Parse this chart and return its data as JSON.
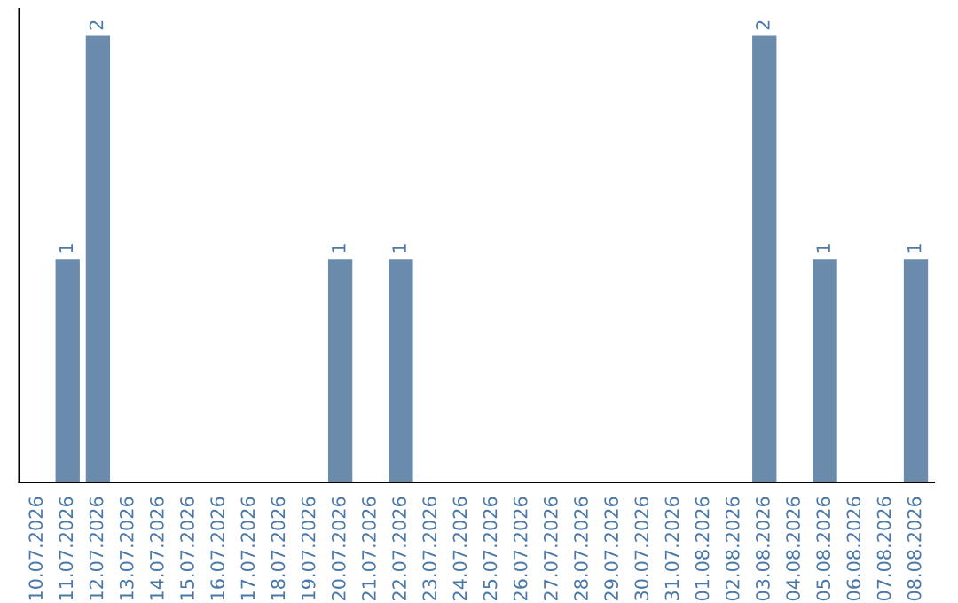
{
  "chart_data": {
    "type": "bar",
    "categories": [
      "10.07.2026",
      "11.07.2026",
      "12.07.2026",
      "13.07.2026",
      "14.07.2026",
      "15.07.2026",
      "16.07.2026",
      "17.07.2026",
      "18.07.2026",
      "19.07.2026",
      "20.07.2026",
      "21.07.2026",
      "22.07.2026",
      "23.07.2026",
      "24.07.2026",
      "25.07.2026",
      "26.07.2026",
      "27.07.2026",
      "28.07.2026",
      "29.07.2026",
      "30.07.2026",
      "31.07.2026",
      "01.08.2026",
      "02.08.2026",
      "03.08.2026",
      "04.08.2026",
      "05.08.2026",
      "06.08.2026",
      "07.08.2026",
      "08.08.2026"
    ],
    "values": [
      0,
      1,
      2,
      0,
      0,
      0,
      0,
      0,
      0,
      0,
      1,
      0,
      1,
      0,
      0,
      0,
      0,
      0,
      0,
      0,
      0,
      0,
      0,
      0,
      2,
      0,
      1,
      0,
      0,
      1
    ],
    "value_labels": [
      null,
      "1",
      "2",
      null,
      null,
      null,
      null,
      null,
      null,
      null,
      "1",
      null,
      "1",
      null,
      null,
      null,
      null,
      null,
      null,
      null,
      null,
      null,
      null,
      null,
      "2",
      null,
      "1",
      null,
      null,
      "1"
    ],
    "color": "#6a8bab",
    "tick_labels": "x",
    "grid": false
  }
}
